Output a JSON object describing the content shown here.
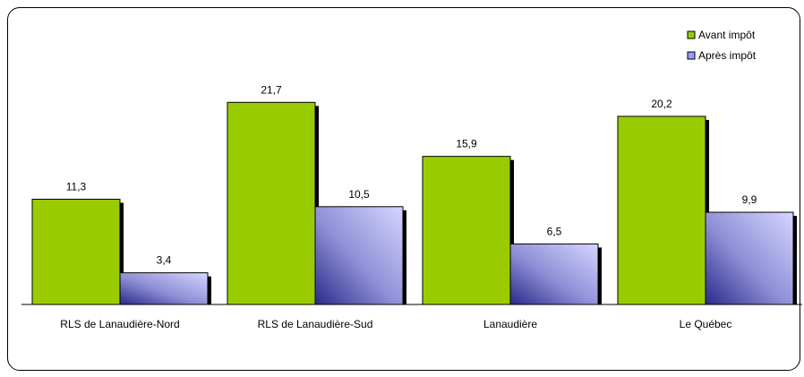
{
  "chart_data": {
    "type": "bar",
    "categories": [
      "RLS de Lanaudière-Nord",
      "RLS de Lanaudière-Sud",
      "Lanaudière",
      "Le Québec"
    ],
    "series": [
      {
        "name": "Avant impôt",
        "values": [
          11.3,
          21.7,
          15.9,
          20.2
        ],
        "labels": [
          "11,3",
          "21,7",
          "15,9",
          "20,2"
        ],
        "color": "#99cc00"
      },
      {
        "name": "Après impôt",
        "values": [
          3.4,
          10.5,
          6.5,
          9.9
        ],
        "labels": [
          "3,4",
          "10,5",
          "6,5",
          "9,9"
        ],
        "color": "#9999ff"
      }
    ],
    "ylim": [
      0,
      25
    ],
    "grid": false,
    "legend": "top-right"
  }
}
